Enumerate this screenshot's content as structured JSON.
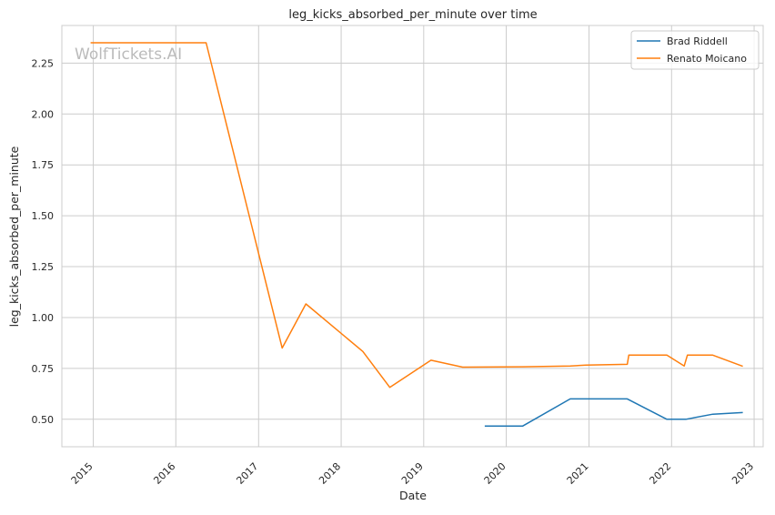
{
  "chart_data": {
    "type": "line",
    "title": "leg_kicks_absorbed_per_minute over time",
    "xlabel": "Date",
    "ylabel": "leg_kicks_absorbed_per_minute",
    "watermark": "WolfTickets.AI",
    "x_ticks": [
      "2015",
      "2016",
      "2017",
      "2018",
      "2019",
      "2020",
      "2021",
      "2022",
      "2023"
    ],
    "y_ticks": [
      "0.50",
      "0.75",
      "1.00",
      "1.25",
      "1.50",
      "1.75",
      "2.00",
      "2.25"
    ],
    "xlim": [
      "2014-08-15",
      "2023-02-10"
    ],
    "ylim": [
      0.365,
      2.435
    ],
    "grid": true,
    "legend_position": "top-right",
    "series": [
      {
        "name": "Brad Riddell",
        "color": "#1f77b4",
        "points": [
          [
            "2019-09-28",
            0.467
          ],
          [
            "2020-03-14",
            0.467
          ],
          [
            "2020-10-10",
            0.6
          ],
          [
            "2021-06-19",
            0.6
          ],
          [
            "2021-12-11",
            0.5
          ],
          [
            "2022-03-05",
            0.5
          ],
          [
            "2022-07-02",
            0.525
          ],
          [
            "2022-11-12",
            0.533
          ]
        ]
      },
      {
        "name": "Renato Moicano",
        "color": "#ff7f0e",
        "points": [
          [
            "2014-12-20",
            2.35
          ],
          [
            "2016-05-14",
            2.35
          ],
          [
            "2017-04-15",
            0.85
          ],
          [
            "2017-07-29",
            1.067
          ],
          [
            "2018-04-07",
            0.833
          ],
          [
            "2018-08-04",
            0.657
          ],
          [
            "2019-02-02",
            0.79
          ],
          [
            "2019-06-22",
            0.756
          ],
          [
            "2020-03-14",
            0.758
          ],
          [
            "2020-10-10",
            0.762
          ],
          [
            "2020-12-19",
            0.766
          ],
          [
            "2021-06-19",
            0.77
          ],
          [
            "2021-06-26",
            0.815
          ],
          [
            "2021-12-11",
            0.815
          ],
          [
            "2022-02-26",
            0.762
          ],
          [
            "2022-03-12",
            0.815
          ],
          [
            "2022-07-02",
            0.815
          ],
          [
            "2022-11-12",
            0.76
          ]
        ]
      }
    ]
  }
}
